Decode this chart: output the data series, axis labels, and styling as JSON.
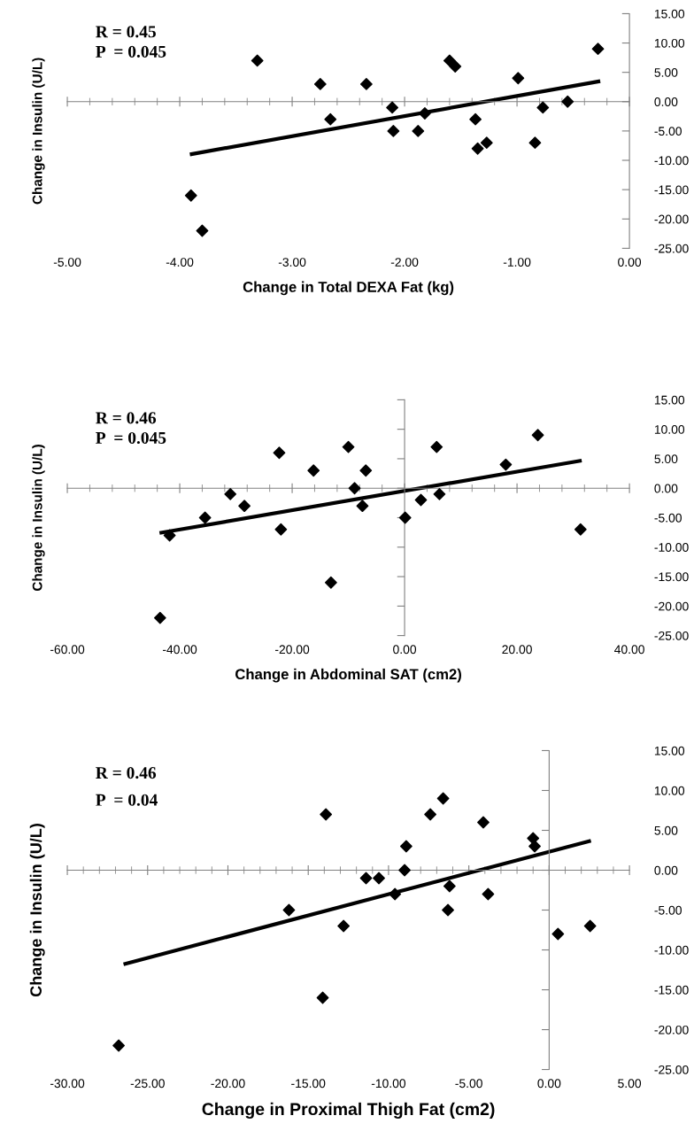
{
  "chart_data": [
    {
      "type": "scatter",
      "xlabel": "Change in Total DEXA Fat (kg)",
      "ylabel": "Change in Insulin (U/L)",
      "annotations": [
        "R = 0.45",
        "P  = 0.045"
      ],
      "xlim": [
        -5,
        0
      ],
      "xticks": [
        {
          "value": -5,
          "label": "-5.00"
        },
        {
          "value": -4,
          "label": "-4.00"
        },
        {
          "value": -3,
          "label": "-3.00"
        },
        {
          "value": -2,
          "label": "-2.00"
        },
        {
          "value": -1,
          "label": "-1.00"
        },
        {
          "value": 0,
          "label": "0.00"
        }
      ],
      "ylim": [
        -25,
        15
      ],
      "yticks": [
        {
          "value": 15,
          "label": "15.00"
        },
        {
          "value": 10,
          "label": "10.00"
        },
        {
          "value": 5,
          "label": "5.00"
        },
        {
          "value": 0,
          "label": "0.00"
        },
        {
          "value": -5,
          "label": "-5.00"
        },
        {
          "value": -10,
          "label": "-10.00"
        },
        {
          "value": -15,
          "label": "-15.00"
        },
        {
          "value": -20,
          "label": "-20.00"
        },
        {
          "value": -25,
          "label": "-25.00"
        }
      ],
      "series": [
        {
          "color": "#000000",
          "marker": "diamond",
          "x": [
            -3.31,
            -2.75,
            -2.34,
            -2.66,
            -2.11,
            -2.1,
            -1.88,
            -1.82,
            -1.6,
            -1.55,
            -1.37,
            -1.35,
            -1.27,
            -0.99,
            -0.84,
            -0.77,
            -0.55,
            -0.28,
            -3.9,
            -3.8
          ],
          "values": [
            7,
            3,
            3,
            -3,
            -1,
            -5,
            -5,
            -2,
            7,
            6,
            -3,
            -8,
            -7,
            4,
            -7,
            -1,
            0,
            9,
            -16,
            -22
          ]
        },
        {
          "type": "line",
          "color": "#000000",
          "marker": "none",
          "x": [
            -3.91,
            -0.26
          ],
          "values": [
            -9,
            3.5
          ]
        }
      ]
    },
    {
      "type": "scatter",
      "xlabel": "Change in Abdominal SAT (cm2)",
      "ylabel": "Change in Insulin (U/L)",
      "annotations": [
        "R = 0.46",
        "P  = 0.045"
      ],
      "xlim": [
        -60,
        40
      ],
      "xticks": [
        {
          "value": -60,
          "label": "-60.00"
        },
        {
          "value": -40,
          "label": "-40.00"
        },
        {
          "value": -20,
          "label": "-20.00"
        },
        {
          "value": 0,
          "label": "0.00"
        },
        {
          "value": 20,
          "label": "20.00"
        },
        {
          "value": 40,
          "label": "40.00"
        }
      ],
      "ylim": [
        -25,
        15
      ],
      "yticks": [
        {
          "value": 15,
          "label": "15.00"
        },
        {
          "value": 10,
          "label": "10.00"
        },
        {
          "value": 5,
          "label": "5.00"
        },
        {
          "value": 0,
          "label": "0.00"
        },
        {
          "value": -5,
          "label": "-5.00"
        },
        {
          "value": -10,
          "label": "-10.00"
        },
        {
          "value": -15,
          "label": "-15.00"
        },
        {
          "value": -20,
          "label": "-20.00"
        },
        {
          "value": -25,
          "label": "-25.00"
        }
      ],
      "series": [
        {
          "color": "#000000",
          "marker": "diamond",
          "x": [
            -41.8,
            -35.5,
            -31,
            -28.5,
            -22.3,
            -22,
            -16.2,
            -10,
            -8.9,
            -6.9,
            -7.5,
            -13.1,
            0.1,
            2.9,
            5.7,
            6.2,
            18,
            23.7,
            31.3,
            -43.5
          ],
          "values": [
            -8,
            -5,
            -1,
            -3,
            6,
            -7,
            3,
            7,
            0,
            3,
            -3,
            -16,
            -5,
            -2,
            7,
            -1,
            4,
            9,
            -7,
            -22
          ]
        },
        {
          "type": "line",
          "color": "#000000",
          "marker": "none",
          "x": [
            -43.6,
            31.5
          ],
          "values": [
            -7.6,
            4.7
          ]
        }
      ]
    },
    {
      "type": "scatter",
      "xlabel": "Change in Proximal Thigh Fat (cm2)",
      "ylabel": "Change in Insulin (U/L)",
      "annotations": [
        "R = 0.46",
        "P  = 0.04"
      ],
      "xlim": [
        -30,
        5
      ],
      "xticks": [
        {
          "value": -30,
          "label": "-30.00"
        },
        {
          "value": -25,
          "label": "-25.00"
        },
        {
          "value": -20,
          "label": "-20.00"
        },
        {
          "value": -15,
          "label": "-15.00"
        },
        {
          "value": -10,
          "label": "-10.00"
        },
        {
          "value": -5,
          "label": "-5.00"
        },
        {
          "value": 0,
          "label": "0.00"
        },
        {
          "value": 5,
          "label": "5.00"
        }
      ],
      "ylim": [
        -25,
        15
      ],
      "yticks": [
        {
          "value": 15,
          "label": "15.00"
        },
        {
          "value": 10,
          "label": "10.00"
        },
        {
          "value": 5,
          "label": "5.00"
        },
        {
          "value": 0,
          "label": "0.00"
        },
        {
          "value": -5,
          "label": "-5.00"
        },
        {
          "value": -10,
          "label": "-10.00"
        },
        {
          "value": -15,
          "label": "-15.00"
        },
        {
          "value": -20,
          "label": "-20.00"
        },
        {
          "value": -25,
          "label": "-25.00"
        }
      ],
      "series": [
        {
          "color": "#000000",
          "marker": "diamond",
          "x": [
            -13.9,
            -16.2,
            -12.8,
            -11.4,
            -10.6,
            -9.6,
            -9,
            -8.9,
            -7.4,
            -6.6,
            -6.2,
            -6.3,
            -4.1,
            -3.8,
            -1,
            -0.9,
            0.55,
            2.55,
            -14.1,
            -26.8
          ],
          "values": [
            7,
            -5,
            -7,
            -1,
            -1,
            -3,
            0,
            3,
            7,
            9,
            -2,
            -5,
            6,
            -3,
            4,
            3,
            -8,
            -7,
            -16,
            -22
          ]
        },
        {
          "type": "line",
          "color": "#000000",
          "marker": "none",
          "x": [
            -26.5,
            2.6
          ],
          "values": [
            -11.8,
            3.7
          ]
        }
      ]
    }
  ]
}
